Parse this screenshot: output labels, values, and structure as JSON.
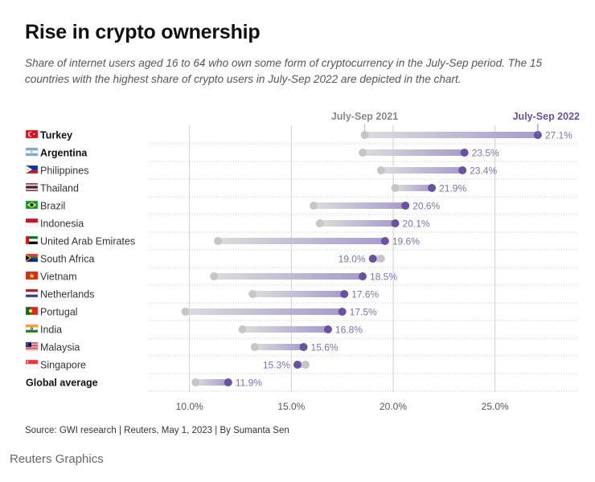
{
  "title": "Rise in crypto ownership",
  "subtitle": "Share of internet users aged 16 to 64 who own some form of cryptocurrency in the July-Sep period. The 15 countries with the highest share of crypto users in July-Sep 2022 are depicted in the chart.",
  "source": "Source: GWI research | Reuters, May 1, 2023 | By Sumanta Sen",
  "brand": "Reuters Graphics",
  "colors": {
    "accent": "#6a51a3",
    "start": "#c6c6c6",
    "label": "#7d71b3",
    "old_header": "#888888",
    "grid": "#bbbbbb"
  },
  "chart_data": {
    "type": "dumbbell",
    "title": "Rise in crypto ownership",
    "series": [
      {
        "name": "July-Sep 2021",
        "key": "v2021"
      },
      {
        "name": "July-Sep 2022",
        "key": "v2022"
      }
    ],
    "xlim": [
      8,
      29
    ],
    "xticks": [
      10,
      15,
      20,
      25
    ],
    "xtick_labels": [
      "10.0%",
      "15.0%",
      "20.0%",
      "25.0%"
    ],
    "rows": [
      {
        "country": "Turkey",
        "flag": "turkey",
        "bold": true,
        "v2021": 18.6,
        "v2022": 27.1,
        "label": "27.1%"
      },
      {
        "country": "Argentina",
        "flag": "argentina",
        "bold": true,
        "v2021": 18.5,
        "v2022": 23.5,
        "label": "23.5%"
      },
      {
        "country": "Philippines",
        "flag": "philippines",
        "bold": false,
        "v2021": 19.4,
        "v2022": 23.4,
        "label": "23.4%"
      },
      {
        "country": "Thailand",
        "flag": "thailand",
        "bold": false,
        "v2021": 20.1,
        "v2022": 21.9,
        "label": "21.9%"
      },
      {
        "country": "Brazil",
        "flag": "brazil",
        "bold": false,
        "v2021": 16.1,
        "v2022": 20.6,
        "label": "20.6%"
      },
      {
        "country": "Indonesia",
        "flag": "indonesia",
        "bold": false,
        "v2021": 16.4,
        "v2022": 20.1,
        "label": "20.1%"
      },
      {
        "country": "United Arab Emirates",
        "flag": "uae",
        "bold": false,
        "v2021": 11.4,
        "v2022": 19.6,
        "label": "19.6%"
      },
      {
        "country": "South Africa",
        "flag": "southafrica",
        "bold": false,
        "v2021": 19.4,
        "v2022": 19.0,
        "label": "19.0%"
      },
      {
        "country": "Vietnam",
        "flag": "vietnam",
        "bold": false,
        "v2021": 11.2,
        "v2022": 18.5,
        "label": "18.5%"
      },
      {
        "country": "Netherlands",
        "flag": "netherlands",
        "bold": false,
        "v2021": 13.1,
        "v2022": 17.6,
        "label": "17.6%"
      },
      {
        "country": "Portugal",
        "flag": "portugal",
        "bold": false,
        "v2021": 9.8,
        "v2022": 17.5,
        "label": "17.5%"
      },
      {
        "country": "India",
        "flag": "india",
        "bold": false,
        "v2021": 12.6,
        "v2022": 16.8,
        "label": "16.8%"
      },
      {
        "country": "Malaysia",
        "flag": "malaysia",
        "bold": false,
        "v2021": 13.2,
        "v2022": 15.6,
        "label": "15.6%"
      },
      {
        "country": "Singapore",
        "flag": "singapore",
        "bold": false,
        "v2021": 15.7,
        "v2022": 15.3,
        "label": "15.3%"
      },
      {
        "country": "Global average",
        "flag": "",
        "bold": true,
        "v2021": 10.3,
        "v2022": 11.9,
        "label": "11.9%"
      }
    ]
  }
}
